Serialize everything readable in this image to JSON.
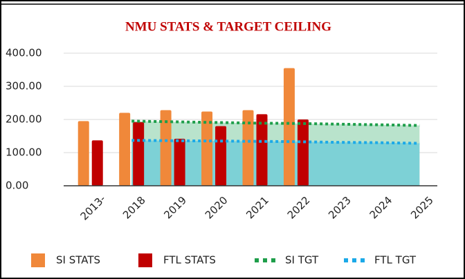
{
  "chart_data": {
    "type": "bar",
    "title": "NMU STATS & TARGET CEILING",
    "categories": [
      "2013-",
      "2018",
      "2019",
      "2020",
      "2021",
      "2022",
      "2023",
      "2024",
      "2025"
    ],
    "series": [
      {
        "name": "SI STATS",
        "type": "bar",
        "color": "#f0883a",
        "values": [
          195,
          220,
          228,
          224,
          228,
          355,
          null,
          null,
          null
        ]
      },
      {
        "name": "FTL STATS",
        "type": "bar",
        "color": "#c00000",
        "values": [
          137,
          192,
          142,
          180,
          216,
          200,
          null,
          null,
          null
        ]
      },
      {
        "name": "SI TGT",
        "type": "line",
        "color": "#1e9e4a",
        "area_color": "#b9e3cc",
        "values": [
          null,
          195,
          193,
          191,
          189,
          188,
          186,
          184,
          182
        ]
      },
      {
        "name": "FTL TGT",
        "type": "line",
        "color": "#1ba9e8",
        "area_color": "#7dd1d6",
        "values": [
          null,
          137,
          136,
          135,
          134,
          133,
          131,
          130,
          128
        ]
      }
    ],
    "ylim": [
      0,
      400
    ],
    "yticks": [
      {
        "value": 0,
        "label": "0.00"
      },
      {
        "value": 100,
        "label": "100.00"
      },
      {
        "value": 200,
        "label": "200.00"
      },
      {
        "value": 300,
        "label": "300.00"
      },
      {
        "value": 400,
        "label": "400.00"
      }
    ],
    "grid": true,
    "legend": "bottom"
  }
}
